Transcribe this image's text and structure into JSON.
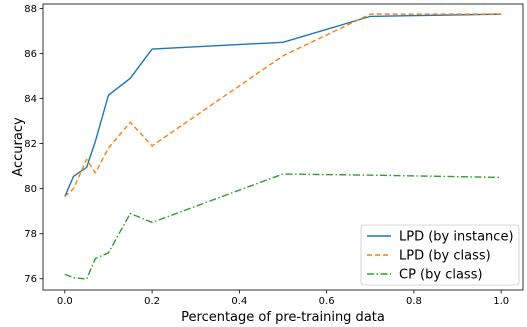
{
  "chart_data": {
    "type": "line",
    "title": "",
    "xlabel": "Percentage of pre-training data",
    "ylabel": "Accuracy",
    "xlim": [
      -0.05,
      1.05
    ],
    "ylim": [
      75.5,
      88.2
    ],
    "xticks": [
      0.0,
      0.2,
      0.4,
      0.6,
      0.8,
      1.0
    ],
    "xtick_labels": [
      "0.0",
      "0.2",
      "0.4",
      "0.6",
      "0.8",
      "1.0"
    ],
    "yticks": [
      76,
      78,
      80,
      82,
      84,
      86,
      88
    ],
    "ytick_labels": [
      "76",
      "78",
      "80",
      "82",
      "84",
      "86",
      "88"
    ],
    "grid": false,
    "legend_position": "bottom-right",
    "series": [
      {
        "name": "LPD (by instance)",
        "color": "#1f77b4",
        "linestyle": "solid",
        "x": [
          0.0,
          0.02,
          0.05,
          0.07,
          0.1,
          0.15,
          0.2,
          0.5,
          0.7,
          1.0
        ],
        "values": [
          79.65,
          80.55,
          80.95,
          82.1,
          84.15,
          84.9,
          86.2,
          86.5,
          87.65,
          87.75
        ]
      },
      {
        "name": "LPD (by class)",
        "color": "#ff7f0e",
        "linestyle": "dashed",
        "x": [
          0.0,
          0.02,
          0.05,
          0.07,
          0.1,
          0.15,
          0.2,
          0.5,
          0.7,
          1.0
        ],
        "values": [
          79.65,
          80.0,
          81.3,
          80.7,
          81.8,
          82.95,
          81.9,
          85.9,
          87.75,
          87.75
        ]
      },
      {
        "name": "CP (by class)",
        "color": "#2ca02c",
        "linestyle": "dashdot",
        "x": [
          0.0,
          0.02,
          0.05,
          0.07,
          0.1,
          0.15,
          0.2,
          0.5,
          0.7,
          1.0
        ],
        "values": [
          76.2,
          76.05,
          75.98,
          76.9,
          77.15,
          78.9,
          78.5,
          80.65,
          80.6,
          80.5
        ]
      }
    ]
  }
}
